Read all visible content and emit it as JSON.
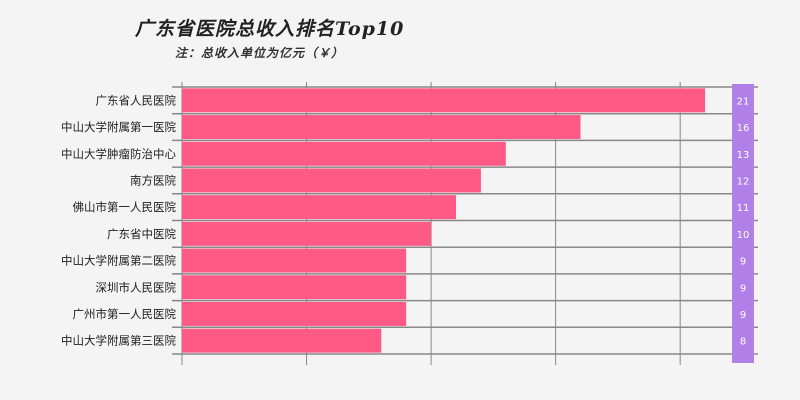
{
  "chart_data": {
    "type": "bar",
    "orientation": "horizontal",
    "title": "广东省医院总收入排名Top10",
    "subtitle": "注：总收入单位为亿元（￥）",
    "categories": [
      "广东省人民医院",
      "中山大学附属第一医院",
      "中山大学肿瘤防治中心",
      "南方医院",
      "佛山市第一人民医院",
      "广东省中医院",
      "中山大学附属第二医院",
      "深圳市人民医院",
      "广州市第一人民医院",
      "中山大学附属第三医院"
    ],
    "values": [
      21,
      16,
      13,
      12,
      11,
      10,
      9,
      9,
      9,
      8
    ],
    "value_labels": [
      "21",
      "16",
      "13",
      "12",
      "11",
      "10",
      "9",
      "9",
      "9",
      "8"
    ],
    "xlim": [
      0,
      22
    ],
    "grid": true,
    "colors": {
      "bar": "#ff5a85",
      "label_column": "#b07fe8",
      "grid": "#888888",
      "background": "#f4f4f4"
    }
  }
}
